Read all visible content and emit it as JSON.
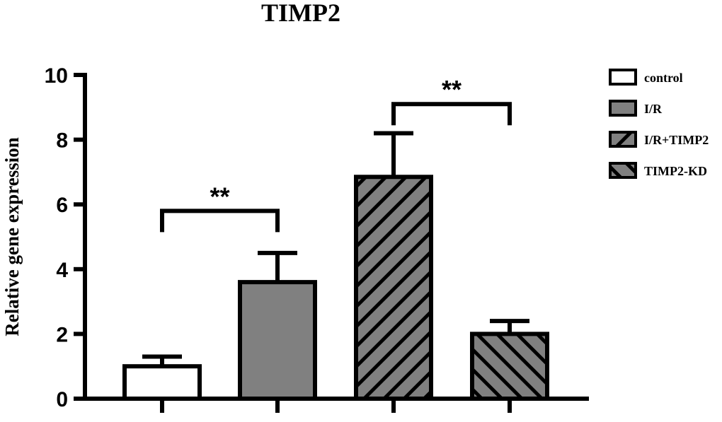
{
  "chart_data": {
    "type": "bar",
    "title": "TIMP2",
    "ylabel": "Relative gene expression",
    "xlabel": "",
    "ylim": [
      0,
      10
    ],
    "yticks": [
      0,
      2,
      4,
      6,
      8,
      10
    ],
    "categories": [
      "control",
      "I/R",
      "I/R+TIMP2",
      "TIMP2-KD"
    ],
    "values": [
      1.0,
      3.6,
      6.85,
      2.0
    ],
    "errors": [
      0.3,
      0.9,
      1.35,
      0.4
    ],
    "fills": [
      {
        "color": "#ffffff",
        "pattern": "solid"
      },
      {
        "color": "#808080",
        "pattern": "solid"
      },
      {
        "color": "#808080",
        "pattern": "diagonal-down"
      },
      {
        "color": "#808080",
        "pattern": "diagonal-up"
      }
    ],
    "legend": {
      "position": "right",
      "entries": [
        "control",
        "I/R",
        "I/R+TIMP2",
        "TIMP2-KD"
      ]
    },
    "significance": [
      {
        "from": 0,
        "to": 1,
        "label": "**",
        "y": 5.8
      },
      {
        "from": 2,
        "to": 3,
        "label": "**",
        "y": 9.1
      }
    ]
  }
}
